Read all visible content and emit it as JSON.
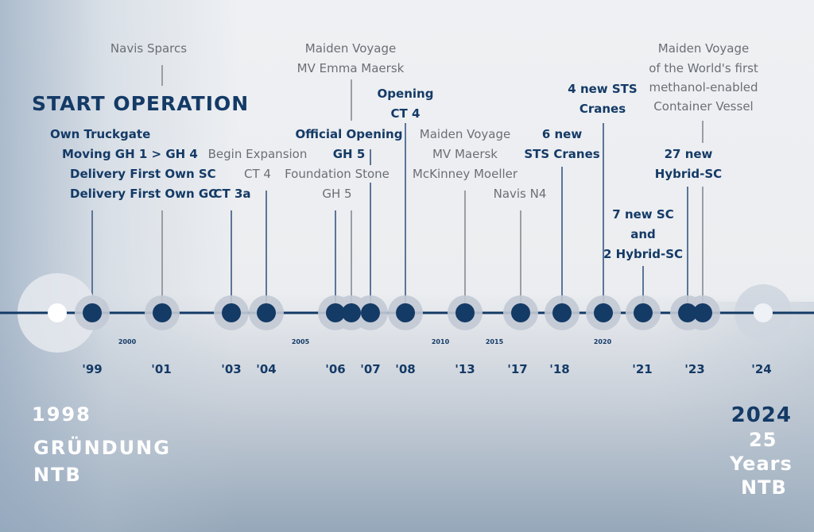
{
  "header": {
    "start_operation": "START OPERATION"
  },
  "events": [
    {
      "id": "gh-d1",
      "text": "Own Truckgate",
      "style": "blue"
    },
    {
      "id": "gh-d2",
      "text": "Moving GH 1 > GH 4",
      "style": "blue"
    },
    {
      "id": "gh-d3",
      "text": "Delivery First Own SC",
      "style": "blue"
    },
    {
      "id": "gh-d4",
      "text": "Delivery First Own GC",
      "style": "blue"
    },
    {
      "id": "navis-sparcs",
      "text": "Navis Sparcs",
      "style": "gray"
    },
    {
      "id": "begin-expansion",
      "text": "Begin Expansion",
      "style": "gray"
    },
    {
      "id": "ct4-a",
      "text": "CT 4",
      "style": "gray"
    },
    {
      "id": "ct3a",
      "text": "CT 3a",
      "style": "blue"
    },
    {
      "id": "maiden-emma-1",
      "text": "Maiden Voyage",
      "style": "gray"
    },
    {
      "id": "maiden-emma-2",
      "text": "MV Emma Maersk",
      "style": "gray"
    },
    {
      "id": "official-opening-1",
      "text": "Official Opening",
      "style": "blue"
    },
    {
      "id": "official-opening-2",
      "text": "GH 5",
      "style": "blue"
    },
    {
      "id": "foundation-1",
      "text": "Foundation Stone",
      "style": "gray"
    },
    {
      "id": "foundation-2",
      "text": "GH 5",
      "style": "gray"
    },
    {
      "id": "opening-ct4-1",
      "text": "Opening",
      "style": "blue"
    },
    {
      "id": "opening-ct4-2",
      "text": "CT 4",
      "style": "blue"
    },
    {
      "id": "maiden-mckinney-1",
      "text": "Maiden Voyage",
      "style": "gray"
    },
    {
      "id": "maiden-mckinney-2",
      "text": "MV Maersk",
      "style": "gray"
    },
    {
      "id": "maiden-mckinney-3",
      "text": "McKinney Moeller",
      "style": "gray"
    },
    {
      "id": "navis-n4",
      "text": "Navis N4",
      "style": "gray"
    },
    {
      "id": "six-sts-1",
      "text": "6 new",
      "style": "blue"
    },
    {
      "id": "six-sts-2",
      "text": "STS Cranes",
      "style": "blue"
    },
    {
      "id": "four-sts-1",
      "text": "4 new STS",
      "style": "blue"
    },
    {
      "id": "four-sts-2",
      "text": "Cranes",
      "style": "blue"
    },
    {
      "id": "seven-sc-1",
      "text": "7 new SC",
      "style": "blue"
    },
    {
      "id": "seven-sc-2",
      "text": "and",
      "style": "blue"
    },
    {
      "id": "seven-sc-3",
      "text": "2 Hybrid-SC",
      "style": "blue"
    },
    {
      "id": "hybrid-27-1",
      "text": "27 new",
      "style": "blue"
    },
    {
      "id": "hybrid-27-2",
      "text": "Hybrid-SC",
      "style": "blue"
    },
    {
      "id": "methanol-1",
      "text": "Maiden Voyage",
      "style": "gray"
    },
    {
      "id": "methanol-2",
      "text": "of the World's first",
      "style": "gray"
    },
    {
      "id": "methanol-3",
      "text": "methanol-enabled",
      "style": "gray"
    },
    {
      "id": "methanol-4",
      "text": "Container Vessel",
      "style": "gray"
    }
  ],
  "year_labels": [
    "'99",
    "'01",
    "'03",
    "'04",
    "'06",
    "'07",
    "'08",
    "'13",
    "'17",
    "'18",
    "'21",
    "'23",
    "'24"
  ],
  "small_years": [
    "2000",
    "2005",
    "2010",
    "2015",
    "2020"
  ],
  "footer": {
    "left_year": "1998",
    "left_line1": "GRÜNDUNG",
    "left_line2": "NTB",
    "right_year": "2024",
    "right_line1": "25",
    "right_line2": "Years",
    "right_line3": "NTB"
  },
  "colors": {
    "navy": "#143a66",
    "gray_text": "#6b6f74",
    "halo": "#c3cad5",
    "stem_blue": "#5b7598",
    "stem_gray": "#9a9ea4"
  }
}
